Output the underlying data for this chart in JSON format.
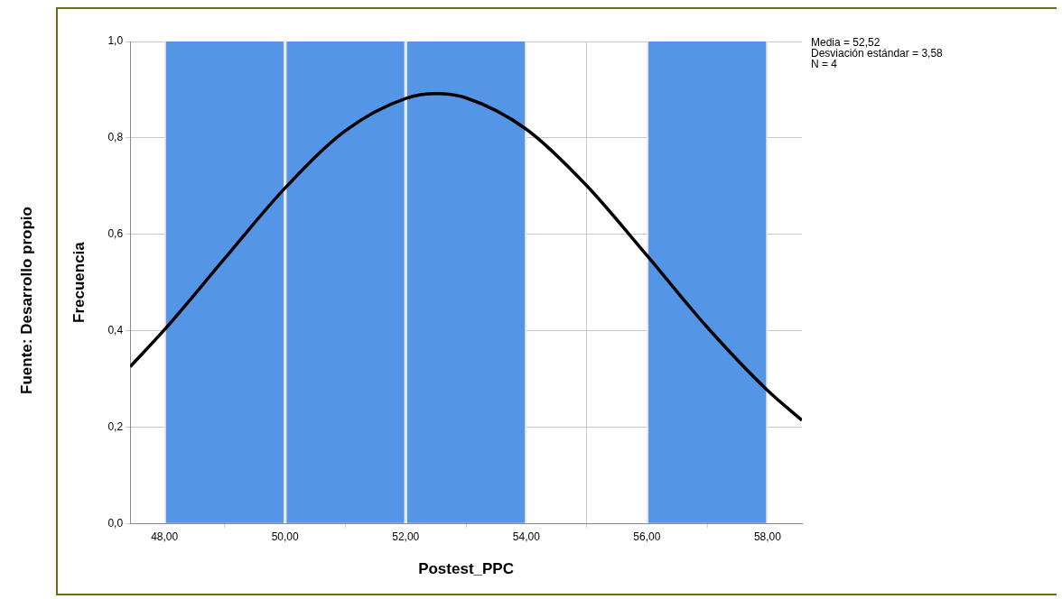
{
  "chart_data": {
    "type": "histogram",
    "xlabel": "Postest_PPC",
    "ylabel": "Frecuencia",
    "bins": [
      48,
      50,
      52,
      54,
      56,
      58
    ],
    "values": [
      1,
      1,
      1,
      0,
      1
    ],
    "color": "#5595e5",
    "series": [
      {
        "type": "line",
        "color": "#000000",
        "x": [
          47.43,
          48,
          49,
          50,
          51,
          52,
          52.52,
          53,
          54,
          55,
          56,
          57,
          58,
          58.57
        ],
        "values": [
          0.325,
          0.402,
          0.55,
          0.696,
          0.815,
          0.882,
          0.892,
          0.883,
          0.818,
          0.701,
          0.556,
          0.407,
          0.276,
          0.214
        ]
      }
    ],
    "xlim": [
      47.43,
      58.57
    ],
    "xticks": [
      {
        "value": 48,
        "label": "48,00"
      },
      {
        "value": 50,
        "label": "50,00"
      },
      {
        "value": 52,
        "label": "52,00"
      },
      {
        "value": 54,
        "label": "54,00"
      },
      {
        "value": 56,
        "label": "56,00"
      },
      {
        "value": 58,
        "label": "58,00"
      }
    ],
    "ylim": [
      0,
      1
    ],
    "yticks": [
      {
        "value": 0,
        "label": "0,0"
      },
      {
        "value": 0.2,
        "label": "0,2"
      },
      {
        "value": 0.4,
        "label": "0,4"
      },
      {
        "value": 0.6,
        "label": "0,6"
      },
      {
        "value": 0.8,
        "label": "0,8"
      },
      {
        "value": 1,
        "label": "1,0"
      }
    ],
    "grid": true,
    "legend": false,
    "annotations": [
      "Media = 52,52",
      "Desviación estándar = 3,58",
      "N = 4",
      "Fuente: Desarrollo propio"
    ]
  }
}
